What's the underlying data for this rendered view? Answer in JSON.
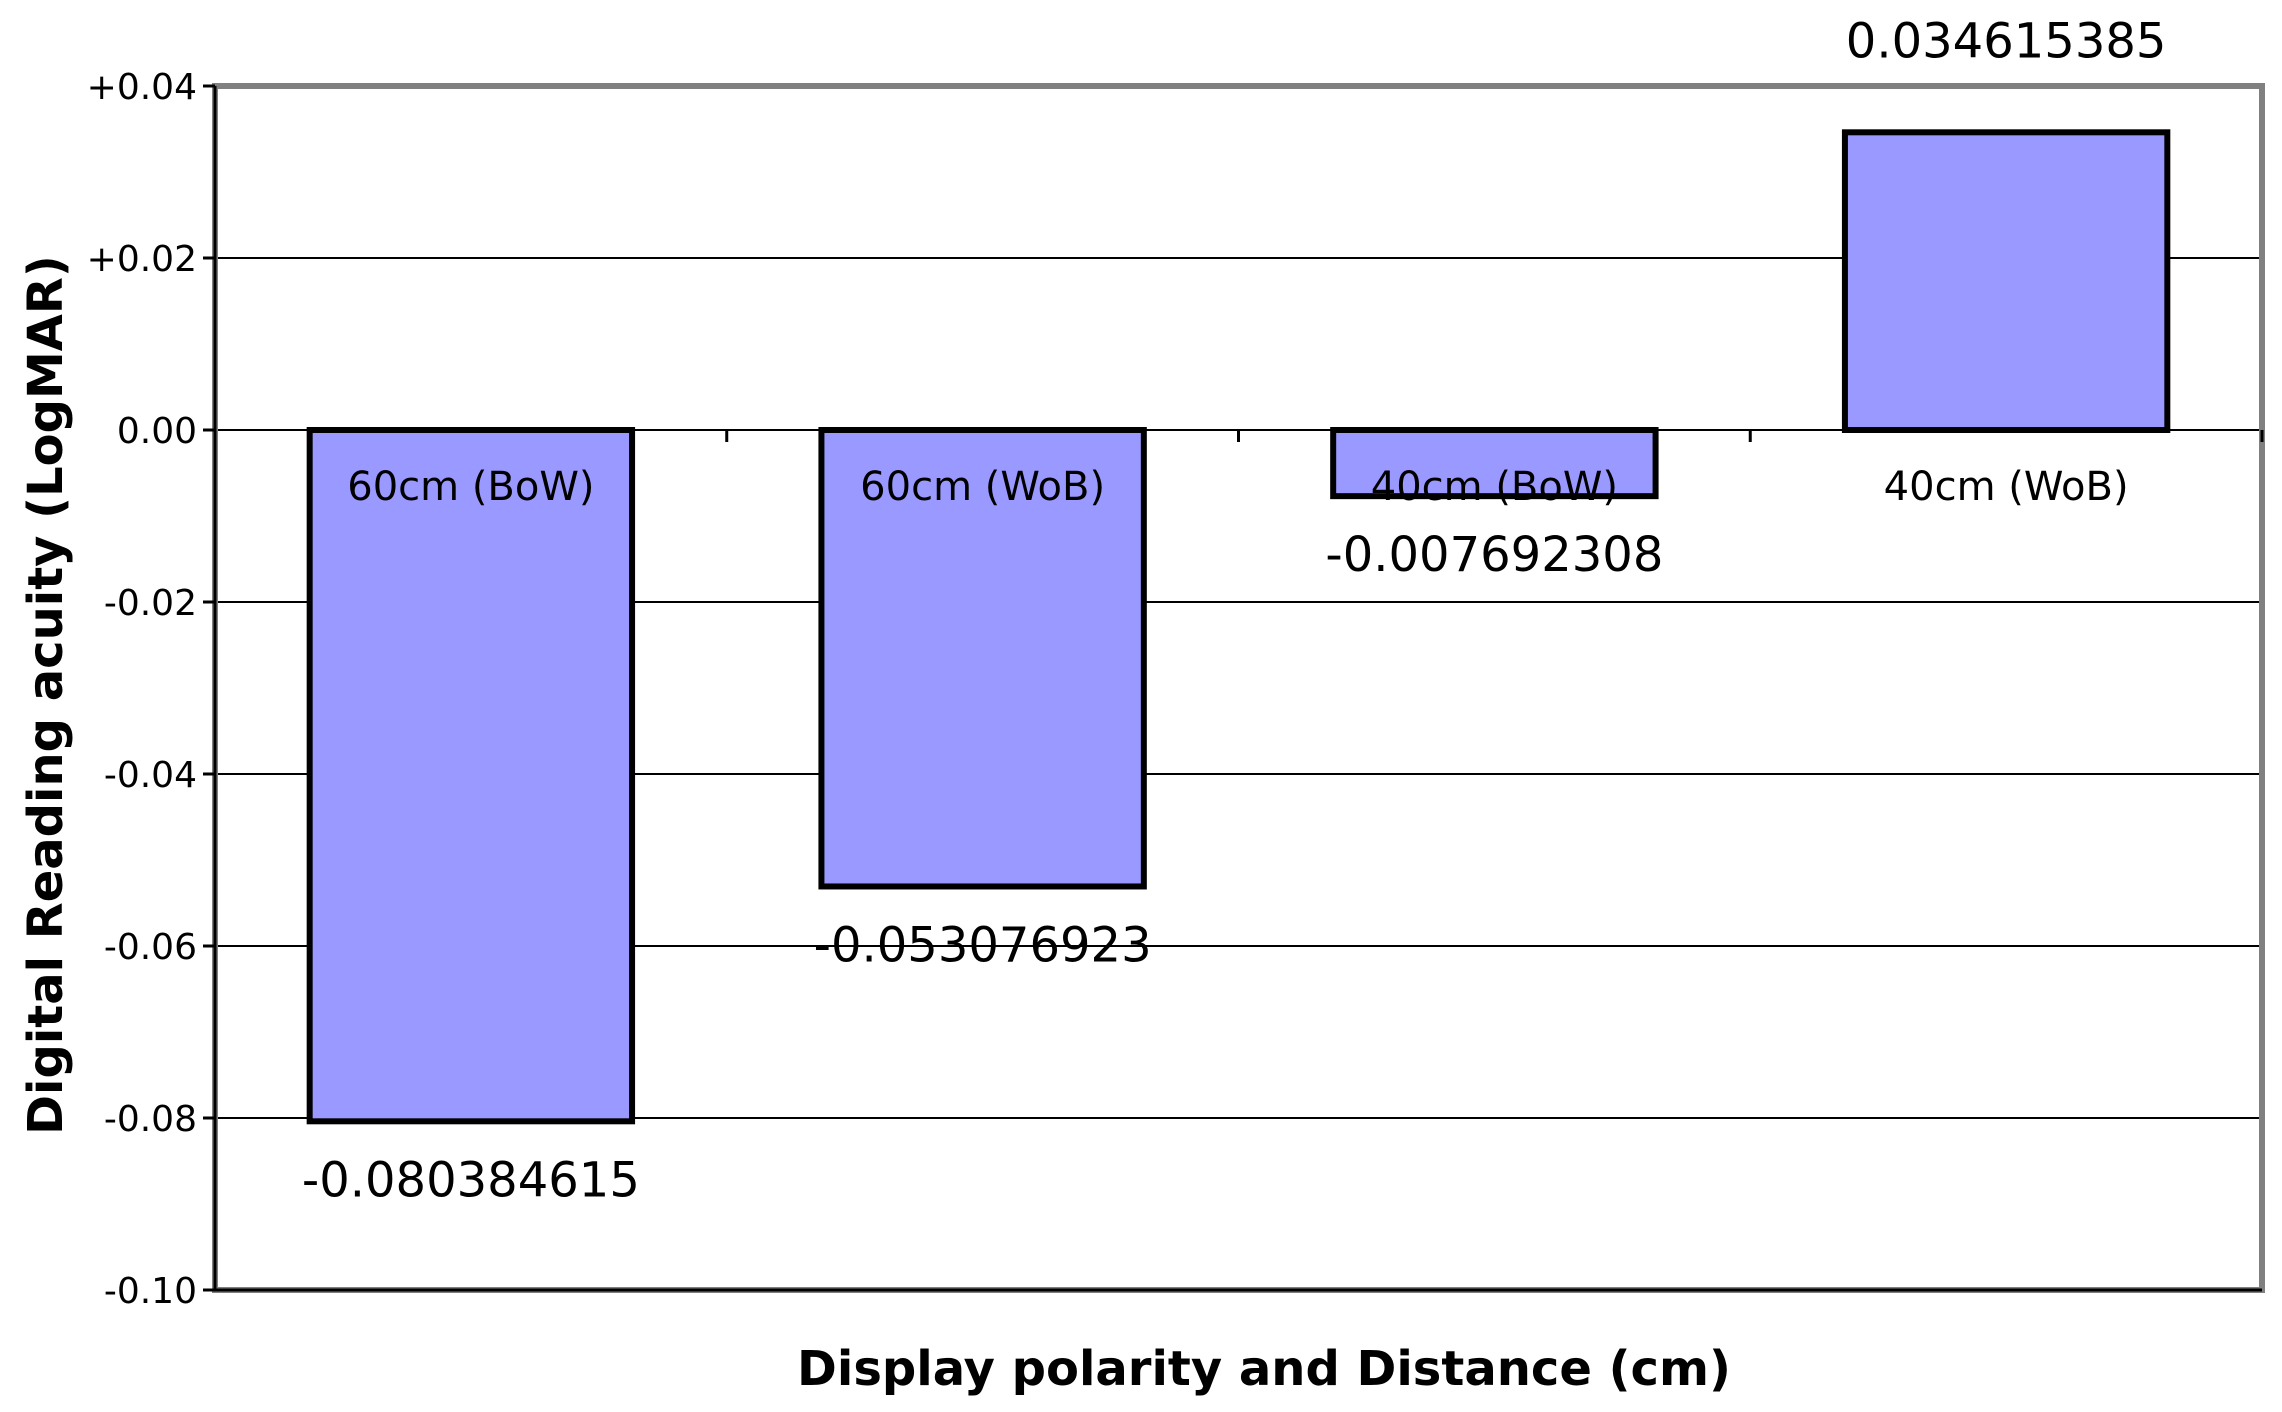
{
  "chart_data": {
    "type": "bar",
    "categories": [
      "60cm (BoW)",
      "60cm (WoB)",
      "40cm (BoW)",
      "40cm (WoB)"
    ],
    "values": [
      -0.080384615,
      -0.053076923,
      -0.007692308,
      0.034615385
    ],
    "data_labels": [
      "-0.080384615",
      "-0.053076923",
      "-0.007692308",
      "0.034615385"
    ],
    "xlabel": "Display polarity and Distance (cm)",
    "ylabel": "Digital Reading acuity (LogMAR)",
    "ylim": [
      -0.1,
      0.04
    ],
    "yticks": [
      0.04,
      0.02,
      0.0,
      -0.02,
      -0.04,
      -0.06,
      -0.08,
      -0.1
    ],
    "ytick_labels": [
      "+0.04",
      "+0.02",
      "0.00",
      "-0.02",
      "-0.04",
      "-0.06",
      "-0.08",
      "-0.10"
    ],
    "grid": true,
    "legend": "none",
    "colors": {
      "bar": "#9999ff",
      "bar_edge": "#000000",
      "gridline": "#000000",
      "frame": "#808080"
    }
  }
}
